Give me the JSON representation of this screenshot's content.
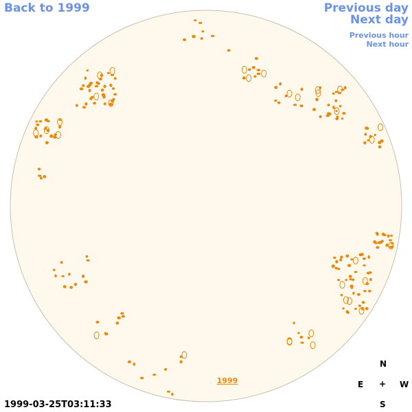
{
  "nav": {
    "back": "Back to 1999",
    "previous_day": "Previous day",
    "next_day": "Next day",
    "previous_hour": "Previous hour",
    "next_hour": "Next hour"
  },
  "timestamp": "1999-03-25T03:11:33",
  "disk": {
    "year_label": "1999",
    "fill_color": "#fff8ec",
    "contour_color": "#e88a10"
  },
  "compass": {
    "north": "N",
    "east": "E",
    "center": "+",
    "west": "W",
    "south": "S"
  }
}
